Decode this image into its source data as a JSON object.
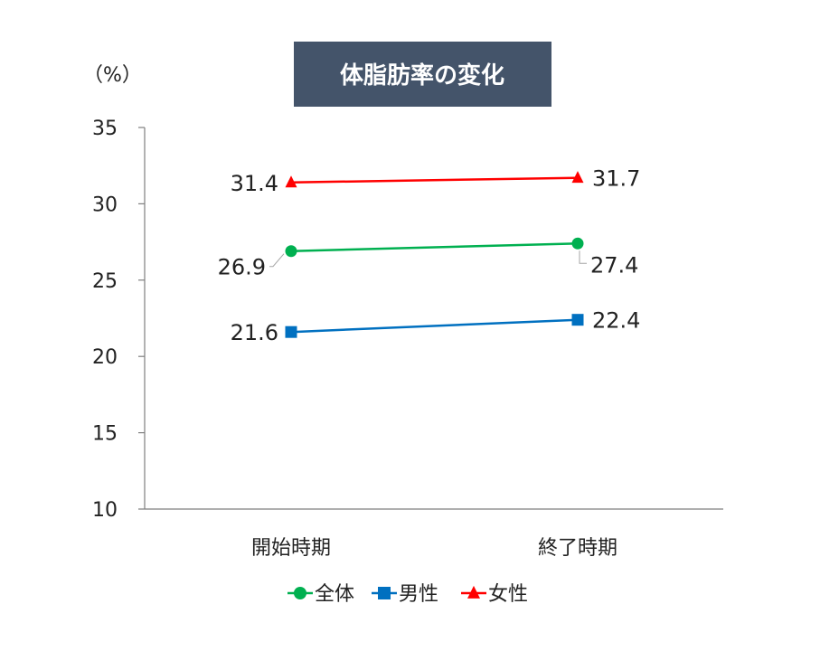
{
  "chart_data": {
    "type": "line",
    "title": "体脂肪率の変化",
    "unit_label": "（%）",
    "categories": [
      "開始時期",
      "終了時期"
    ],
    "ylim": [
      10,
      35
    ],
    "yticks": [
      10,
      15,
      20,
      25,
      30,
      35
    ],
    "grid": false,
    "legend_position": "bottom",
    "series": [
      {
        "name": "全体",
        "values": [
          26.9,
          27.4
        ],
        "labels": [
          "26.9",
          "27.4"
        ],
        "color": "#00B050",
        "marker": "circle"
      },
      {
        "name": "男性",
        "values": [
          21.6,
          22.4
        ],
        "labels": [
          "21.6",
          "22.4"
        ],
        "color": "#0070C0",
        "marker": "square"
      },
      {
        "name": "女性",
        "values": [
          31.4,
          31.7
        ],
        "labels": [
          "31.4",
          "31.7"
        ],
        "color": "#FF0000",
        "marker": "triangle"
      }
    ]
  }
}
